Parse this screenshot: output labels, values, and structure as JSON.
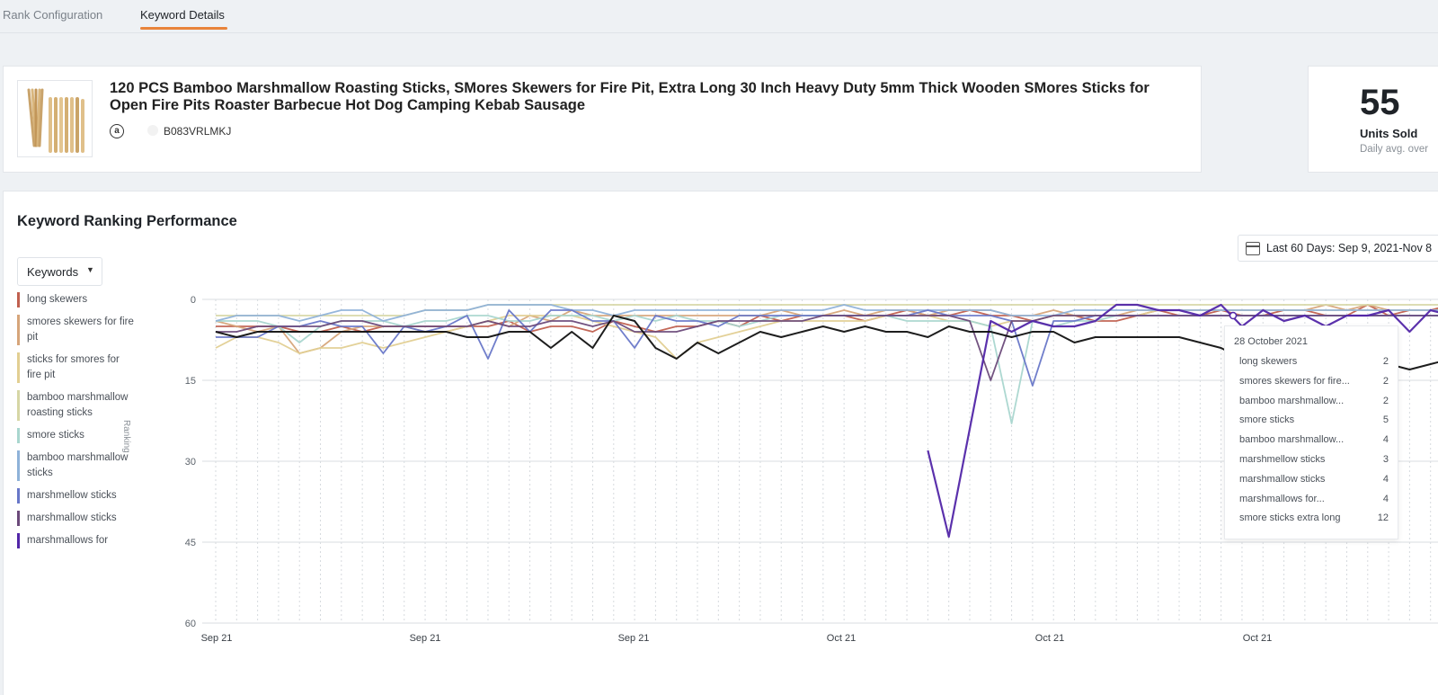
{
  "tabs": [
    {
      "label": "Rank Configuration",
      "active": false
    },
    {
      "label": "Keyword Details",
      "active": true
    }
  ],
  "product": {
    "title": "120 PCS Bamboo Marshmallow Roasting Sticks, SMores Skewers for Fire Pit, Extra Long 30 Inch Heavy Duty 5mm Thick Wooden SMores Sticks for Open Fire Pits Roaster Barbecue Hot Dog Camping Kebab Sausage",
    "asin": "B083VRLMKJ",
    "marketplace_icon": "amazon-icon"
  },
  "units": {
    "value": "55",
    "label": "Units Sold",
    "sub": "Daily avg. over"
  },
  "performance": {
    "title": "Keyword Ranking Performance",
    "date_range": "Last 60 Days: Sep 9, 2021-Nov 8",
    "keywords_button": "Keywords",
    "y_axis_label": "Ranking"
  },
  "legend": [
    {
      "label": "long skewers",
      "color": "#c0604f"
    },
    {
      "label": "smores skewers for fire pit",
      "color": "#d6a57a"
    },
    {
      "label": "sticks for smores for fire pit",
      "color": "#e2cf92"
    },
    {
      "label": "bamboo marshmallow roasting sticks",
      "color": "#d6d6a5"
    },
    {
      "label": "smore sticks",
      "color": "#a9d6cf"
    },
    {
      "label": "bamboo marshmallow sticks",
      "color": "#8fb2d9"
    },
    {
      "label": "marshmellow sticks",
      "color": "#6877c8"
    },
    {
      "label": "marshmallow sticks",
      "color": "#6b4a7a"
    },
    {
      "label": "marshmallows for",
      "color": "#5226a8"
    }
  ],
  "tooltip": {
    "date": "28 October 2021",
    "rows": [
      {
        "keyword": "long skewers",
        "rank": "2"
      },
      {
        "keyword": "smores skewers for fire...",
        "rank": "2"
      },
      {
        "keyword": "bamboo marshmallow...",
        "rank": "2"
      },
      {
        "keyword": "smore sticks",
        "rank": "5"
      },
      {
        "keyword": "bamboo marshmallow...",
        "rank": "4"
      },
      {
        "keyword": "marshmellow sticks",
        "rank": "3"
      },
      {
        "keyword": "marshmallow sticks",
        "rank": "4"
      },
      {
        "keyword": "marshmallows for...",
        "rank": "4"
      },
      {
        "keyword": "smore sticks extra long",
        "rank": "12"
      }
    ]
  },
  "chart_data": {
    "type": "line",
    "ylim": [
      60,
      0
    ],
    "yticks": [
      "0",
      "15",
      "30",
      "45",
      "60"
    ],
    "xticks": [
      "Sep 21",
      "Sep 21",
      "Sep 21",
      "Oct 21",
      "Oct 21",
      "Oct 21"
    ],
    "x": [
      1,
      2,
      3,
      4,
      5,
      6,
      7,
      8,
      9,
      10,
      11,
      12,
      13,
      14,
      15,
      16,
      17,
      18,
      19,
      20,
      21,
      22,
      23,
      24,
      25,
      26,
      27,
      28,
      29,
      30,
      31,
      32,
      33,
      34,
      35,
      36,
      37,
      38,
      39,
      40,
      41,
      42,
      43,
      44,
      45,
      46,
      47,
      48,
      49,
      50,
      51,
      52,
      53,
      54,
      55,
      56,
      57,
      58,
      59,
      60
    ],
    "grid": true,
    "series": [
      {
        "name": "long skewers",
        "color": "#c0604f",
        "width": 1.8,
        "values": [
          5,
          5,
          5,
          5,
          6,
          6,
          5,
          6,
          5,
          5,
          5,
          5,
          5,
          5,
          4,
          6,
          5,
          5,
          6,
          4,
          5,
          6,
          5,
          5,
          4,
          5,
          3,
          4,
          3,
          3,
          3,
          4,
          3,
          2,
          3,
          3,
          2,
          3,
          3,
          4,
          3,
          3,
          4,
          4,
          3,
          2,
          3,
          3,
          2,
          3,
          3,
          2,
          2,
          3,
          3,
          1,
          3,
          2,
          2,
          1
        ]
      },
      {
        "name": "smores skewers for fire pit",
        "color": "#d6a57a",
        "width": 1.8,
        "values": [
          4,
          5,
          6,
          5,
          10,
          9,
          6,
          5,
          5,
          5,
          6,
          6,
          5,
          4,
          5,
          3,
          4,
          2,
          3,
          3,
          3,
          3,
          3,
          3,
          3,
          3,
          3,
          2,
          3,
          3,
          2,
          3,
          2,
          2,
          3,
          2,
          2,
          2,
          3,
          3,
          2,
          3,
          3,
          3,
          2,
          2,
          2,
          2,
          2,
          2,
          2,
          2,
          2,
          1,
          2,
          1,
          2,
          2,
          2,
          2
        ]
      },
      {
        "name": "sticks for smores for fire pit",
        "color": "#e2cf92",
        "width": 1.8,
        "values": [
          9,
          7,
          7,
          8,
          10,
          9,
          9,
          8,
          9,
          8,
          7,
          6,
          5,
          4,
          3,
          3,
          3,
          3,
          4,
          5,
          6,
          7,
          11,
          8,
          7,
          6,
          5,
          4,
          4,
          4,
          4,
          4,
          3,
          3,
          3,
          4,
          4,
          5,
          4,
          4,
          3,
          3,
          3,
          3,
          3,
          2,
          2,
          2,
          2,
          2,
          2,
          2,
          2,
          2,
          2,
          2,
          2,
          2,
          2,
          2
        ]
      },
      {
        "name": "bamboo marshmallow roasting sticks",
        "color": "#d6d6a5",
        "width": 1.8,
        "values": [
          3,
          3,
          3,
          3,
          3,
          3,
          3,
          3,
          3,
          3,
          2,
          2,
          2,
          1,
          1,
          1,
          1,
          1,
          1,
          1,
          1,
          1,
          1,
          1,
          1,
          1,
          1,
          1,
          1,
          1,
          1,
          1,
          1,
          1,
          1,
          1,
          1,
          1,
          1,
          1,
          1,
          1,
          1,
          1,
          1,
          1,
          1,
          1,
          1,
          1,
          1,
          1,
          1,
          1,
          1,
          1,
          1,
          1,
          1,
          1
        ]
      },
      {
        "name": "smore sticks",
        "color": "#a9d6cf",
        "width": 1.8,
        "values": [
          4,
          4,
          4,
          5,
          8,
          5,
          4,
          4,
          4,
          5,
          4,
          4,
          3,
          3,
          4,
          4,
          3,
          3,
          3,
          4,
          3,
          4,
          3,
          4,
          4,
          5,
          4,
          3,
          3,
          3,
          3,
          3,
          3,
          4,
          4,
          4,
          4,
          5,
          23,
          4,
          5,
          4,
          4,
          3,
          3,
          3,
          3,
          3,
          3,
          3,
          3,
          3,
          3,
          3,
          3,
          3,
          3,
          3,
          3,
          3
        ]
      },
      {
        "name": "bamboo marshmallow sticks",
        "color": "#8fb2d9",
        "width": 1.8,
        "values": [
          4,
          3,
          3,
          3,
          4,
          3,
          2,
          2,
          4,
          3,
          2,
          2,
          2,
          1,
          1,
          1,
          1,
          2,
          2,
          3,
          2,
          2,
          2,
          2,
          2,
          2,
          2,
          2,
          2,
          2,
          1,
          2,
          2,
          2,
          2,
          2,
          2,
          2,
          3,
          3,
          3,
          2,
          2,
          2,
          2,
          2,
          2,
          2,
          2,
          2,
          2,
          2,
          2,
          2,
          2,
          2,
          2,
          2,
          2,
          2
        ]
      },
      {
        "name": "marshmellow sticks",
        "color": "#6877c8",
        "width": 1.8,
        "values": [
          7,
          7,
          7,
          5,
          5,
          4,
          5,
          5,
          10,
          5,
          6,
          5,
          3,
          11,
          2,
          6,
          2,
          2,
          4,
          4,
          9,
          3,
          4,
          4,
          5,
          3,
          3,
          3,
          3,
          3,
          3,
          3,
          3,
          3,
          2,
          3,
          3,
          3,
          4,
          16,
          4,
          4,
          3,
          3,
          3,
          3,
          3,
          3,
          3,
          3,
          3,
          3,
          3,
          3,
          3,
          3,
          3,
          3,
          3,
          3
        ]
      },
      {
        "name": "marshmallow sticks",
        "color": "#6b4a7a",
        "width": 1.8,
        "values": [
          6,
          6,
          5,
          5,
          5,
          5,
          4,
          4,
          5,
          5,
          5,
          5,
          5,
          4,
          5,
          5,
          4,
          4,
          5,
          4,
          6,
          6,
          6,
          5,
          4,
          4,
          4,
          4,
          4,
          3,
          3,
          3,
          3,
          3,
          3,
          3,
          4,
          15,
          4,
          4,
          3,
          3,
          3,
          3,
          3,
          3,
          3,
          3,
          3,
          3,
          3,
          3,
          3,
          3,
          3,
          3,
          3,
          3,
          3,
          3
        ]
      },
      {
        "name": "marshmallows for",
        "color": "#5226a8",
        "width": 2.2,
        "values": [
          null,
          null,
          null,
          null,
          null,
          null,
          null,
          null,
          null,
          null,
          null,
          null,
          null,
          null,
          null,
          null,
          null,
          null,
          null,
          null,
          null,
          null,
          null,
          null,
          null,
          null,
          null,
          null,
          null,
          null,
          null,
          null,
          null,
          null,
          28,
          44,
          24,
          4,
          6,
          4,
          5,
          5,
          4,
          1,
          1,
          2,
          2,
          3,
          1,
          5,
          2,
          4,
          3,
          5,
          3,
          3,
          2,
          6,
          2,
          3
        ]
      },
      {
        "name": "smore sticks extra long",
        "color": "#111111",
        "width": 2,
        "values": [
          6,
          7,
          6,
          6,
          6,
          6,
          6,
          6,
          6,
          6,
          6,
          6,
          7,
          7,
          6,
          6,
          9,
          6,
          9,
          3,
          4,
          9,
          11,
          8,
          10,
          8,
          6,
          7,
          6,
          5,
          6,
          5,
          6,
          6,
          7,
          5,
          6,
          6,
          7,
          6,
          6,
          8,
          7,
          7,
          7,
          7,
          7,
          8,
          9,
          11,
          12,
          6,
          10,
          8,
          11,
          12,
          12,
          13,
          12,
          11
        ]
      }
    ]
  }
}
